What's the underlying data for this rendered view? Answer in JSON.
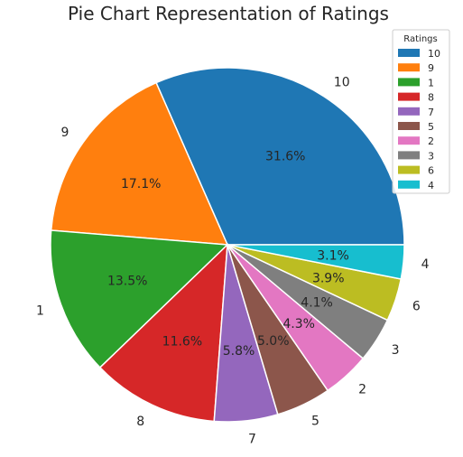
{
  "chart_data": {
    "type": "pie",
    "title": "Pie Chart Representation of Ratings",
    "legend_title": "Ratings",
    "legend_placement": "top-right",
    "start_angle_deg": 0,
    "direction": "counterclockwise",
    "categories": [
      "10",
      "9",
      "1",
      "8",
      "7",
      "5",
      "2",
      "3",
      "6",
      "4"
    ],
    "values": [
      31.6,
      17.1,
      13.5,
      11.6,
      5.8,
      5.0,
      4.3,
      4.1,
      3.9,
      3.1
    ],
    "labels": [
      "31.6%",
      "17.1%",
      "13.5%",
      "11.6%",
      "5.8%",
      "5.0%",
      "4.3%",
      "4.1%",
      "3.9%",
      "3.1%"
    ],
    "colors": [
      "#1f77b4",
      "#ff7f0e",
      "#2ca02c",
      "#d62728",
      "#9467bd",
      "#8c564b",
      "#e377c2",
      "#7f7f7f",
      "#bcbd22",
      "#17becf"
    ]
  }
}
